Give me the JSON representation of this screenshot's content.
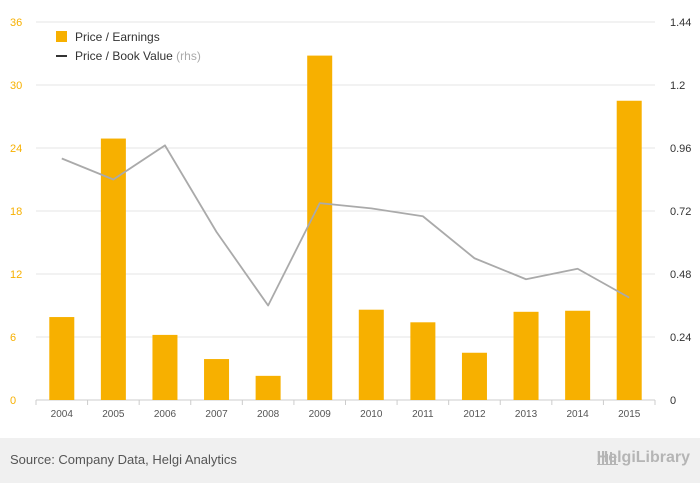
{
  "chart_data": {
    "type": "bar",
    "categories": [
      "2004",
      "2005",
      "2006",
      "2007",
      "2008",
      "2009",
      "2010",
      "2011",
      "2012",
      "2013",
      "2014",
      "2015"
    ],
    "series": [
      {
        "name": "Price / Earnings",
        "type": "bar",
        "axis": "left",
        "values": [
          7.9,
          24.9,
          6.2,
          3.9,
          2.3,
          32.8,
          8.6,
          7.4,
          4.5,
          8.4,
          8.5,
          28.5
        ]
      },
      {
        "name": "Price / Book Value",
        "type": "line",
        "axis": "right",
        "values": [
          0.92,
          0.84,
          0.97,
          0.64,
          0.36,
          0.75,
          0.73,
          0.7,
          0.54,
          0.46,
          0.5,
          0.39
        ]
      }
    ],
    "legend_suffix": "(rhs)",
    "left_axis": {
      "ticks": [
        "0",
        "6",
        "12",
        "18",
        "24",
        "30",
        "36"
      ],
      "ylim": [
        0,
        36
      ]
    },
    "right_axis": {
      "ticks": [
        "0",
        "0.24",
        "0.48",
        "0.72",
        "0.96",
        "1.2",
        "1.44"
      ],
      "ylim": [
        0,
        1.44
      ]
    },
    "grid": true,
    "legend_position": "top-left",
    "colors": {
      "bar": "#f7b000",
      "line": "#aaaaaa",
      "legend_line": "#333333",
      "left_tick": "#f7b000",
      "right_tick": "#333333"
    }
  },
  "footer": {
    "source": "Source: Company Data, Helgi Analytics",
    "brand": "HelgiLibrary"
  }
}
